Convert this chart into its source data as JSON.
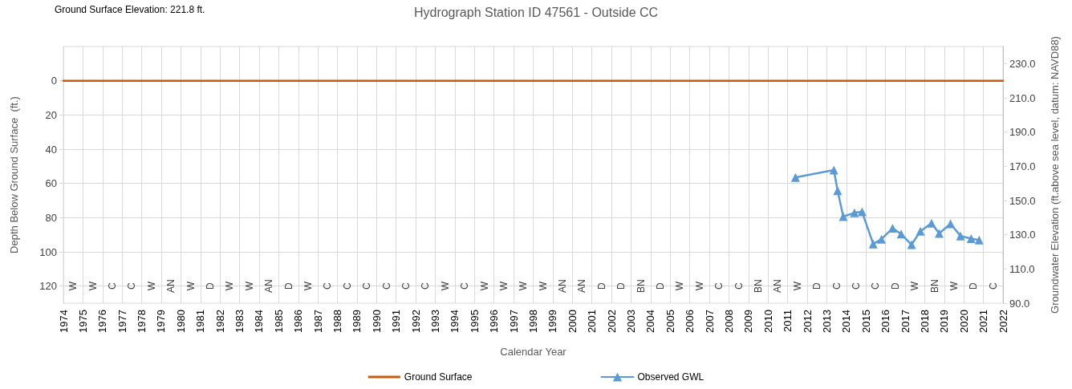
{
  "chart_data": {
    "type": "line",
    "title": "Hydrograph Station ID 47561 - Outside CC",
    "xlabel": "Calendar Year",
    "ylabel": "Depth Below Ground Surface  (ft.)",
    "y2label": "Groundwater Elevation (ft.above sea level, datum: NAVD88)",
    "xlim": [
      1974,
      2022
    ],
    "xticks": [
      1974,
      1975,
      1976,
      1977,
      1978,
      1979,
      1980,
      1981,
      1982,
      1983,
      1984,
      1985,
      1986,
      1987,
      1988,
      1989,
      1990,
      1991,
      1992,
      1993,
      1994,
      1995,
      1996,
      1997,
      1998,
      1999,
      2000,
      2001,
      2002,
      2003,
      2004,
      2005,
      2006,
      2007,
      2008,
      2009,
      2010,
      2011,
      2012,
      2013,
      2014,
      2015,
      2016,
      2017,
      2018,
      2019,
      2020,
      2021,
      2022
    ],
    "ylim": [
      130,
      -20
    ],
    "yticks": [
      0,
      20,
      40,
      60,
      80,
      100,
      120
    ],
    "y2lim": [
      90,
      240
    ],
    "y2ticks": [
      {
        "value": 90,
        "label": "90.0"
      },
      {
        "value": 110,
        "label": "110.0"
      },
      {
        "value": 130,
        "label": "130.0"
      },
      {
        "value": 150,
        "label": "150.0"
      },
      {
        "value": 170,
        "label": "170.0"
      },
      {
        "value": 190,
        "label": "190.0"
      },
      {
        "value": 210,
        "label": "210.0"
      },
      {
        "value": 230,
        "label": "230.0"
      }
    ],
    "grid": true,
    "legend": "bottom",
    "series": [
      {
        "name": "Ground Surface",
        "color": "#c55a11",
        "marker": "none",
        "x": [
          1974,
          2022
        ],
        "values": [
          0,
          0
        ]
      },
      {
        "name": "Observed GWL",
        "color": "#5b9bd5",
        "marker": "triangle",
        "x": [
          2011.4,
          2013.36,
          2013.55,
          2013.84,
          2014.41,
          2014.8,
          2015.37,
          2015.79,
          2016.36,
          2016.8,
          2017.33,
          2017.78,
          2018.35,
          2018.74,
          2019.32,
          2019.83,
          2020.37,
          2020.78
        ],
        "values": [
          56.5,
          52.2,
          64.3,
          79.4,
          77.2,
          76.6,
          95.4,
          92.6,
          86.2,
          89.6,
          95.8,
          87.9,
          83.3,
          89.2,
          83.6,
          90.7,
          92.3,
          93.1
        ]
      }
    ],
    "annotations": [
      "Ground Surface Elevation: 221.8 ft.",
      "W",
      "W",
      "C",
      "C",
      "W",
      "AN",
      "W",
      "D",
      "W",
      "W",
      "AN",
      "D",
      "W",
      "C",
      "C",
      "C",
      "C",
      "C",
      "C",
      "W",
      "C",
      "W",
      "W",
      "W",
      "W",
      "AN",
      "AN",
      "D",
      "D",
      "BN",
      "D",
      "W",
      "W",
      "C",
      "C",
      "BN",
      "AN",
      "W",
      "D",
      "C",
      "C",
      "C",
      "D",
      "W",
      "BN",
      "W",
      "D",
      "C"
    ]
  }
}
